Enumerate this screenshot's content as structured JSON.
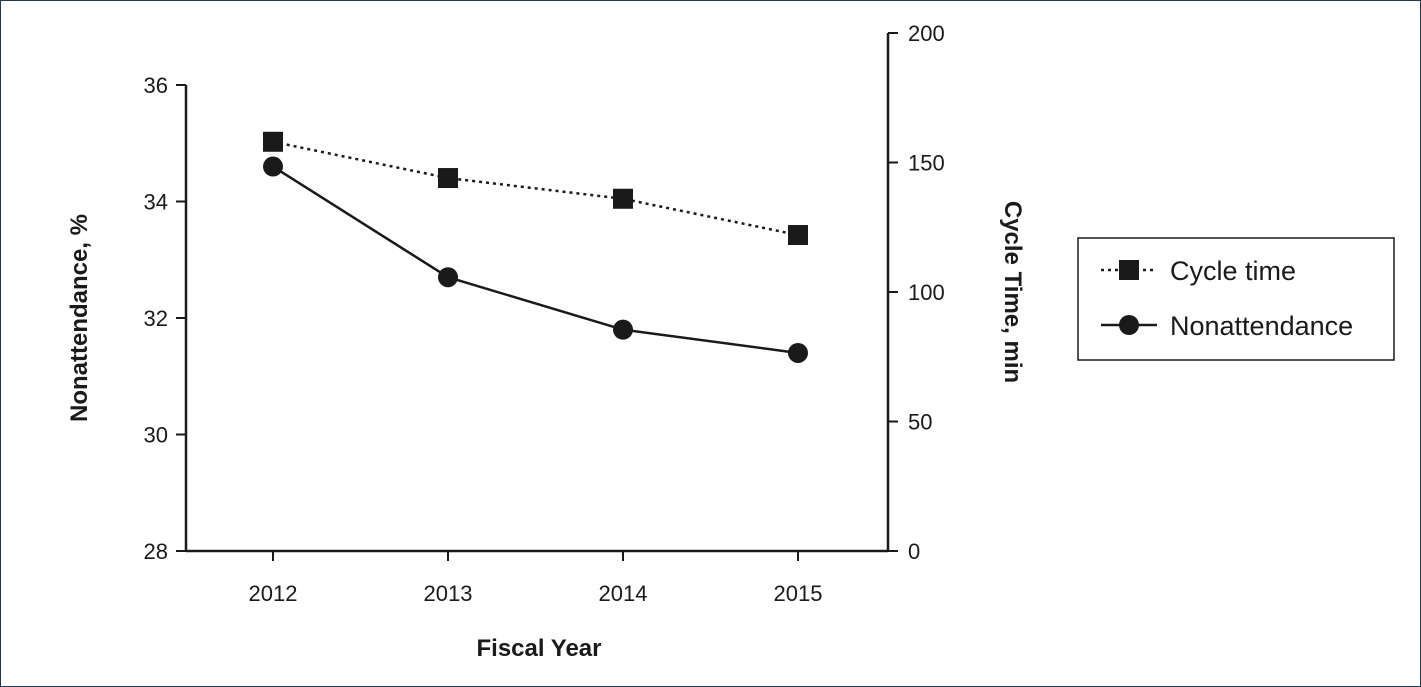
{
  "chart_data": {
    "type": "line",
    "categories": [
      "2012",
      "2013",
      "2014",
      "2015"
    ],
    "xlabel": "Fiscal Year",
    "ylabel_left": "Nonattendance, %",
    "ylabel_right": "Cycle Time, min",
    "ylim_left": [
      28,
      36
    ],
    "yticks_left": [
      "28",
      "30",
      "32",
      "34",
      "36"
    ],
    "ylim_right": [
      0,
      200
    ],
    "yticks_right": [
      "0",
      "50",
      "100",
      "150",
      "200"
    ],
    "legend_position": "right",
    "grid": false,
    "series": [
      {
        "name": "Cycle time",
        "axis": "right",
        "marker": "square",
        "line_style": "dotted",
        "values": [
          158,
          144,
          136,
          122
        ]
      },
      {
        "name": "Nonattendance",
        "axis": "left",
        "marker": "circle",
        "line_style": "solid",
        "values": [
          34.6,
          32.7,
          31.8,
          31.4
        ]
      }
    ],
    "colors": {
      "line": "#1a1a1a",
      "frame": "#1f3a4d"
    }
  }
}
